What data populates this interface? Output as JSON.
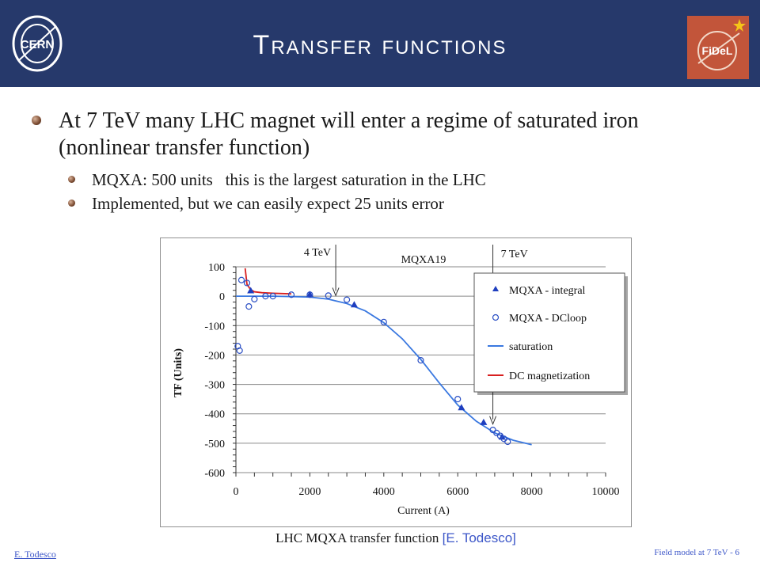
{
  "header": {
    "title": "Transfer functions",
    "cern_logo_text": "CERN",
    "fidel_logo_text": "FiDeL"
  },
  "bullets": [
    {
      "level": 1,
      "text": "At 7 TeV many LHC magnet will enter a regime of saturated iron (nonlinear transfer function)"
    },
    {
      "level": 2,
      "text": "MQXA: 500 units   this is the largest saturation in the LHC"
    },
    {
      "level": 2,
      "text": "Implemented, but we can easily expect 25 units error"
    }
  ],
  "chart_data": {
    "type": "scatter",
    "title": "MQXA19",
    "xlabel": "Current (A)",
    "ylabel": "TF (Units)",
    "xlim": [
      0,
      10000
    ],
    "ylim": [
      -600,
      100
    ],
    "x_ticks": [
      0,
      2000,
      4000,
      6000,
      8000,
      10000
    ],
    "y_ticks": [
      100,
      0,
      -100,
      -200,
      -300,
      -400,
      -500,
      -600
    ],
    "grid": "horizontal",
    "legend_position": "right",
    "series": [
      {
        "name": "MQXA - integral",
        "style": "triangle",
        "color": "#1f3fbf",
        "x": [
          400,
          2000,
          3200,
          6100,
          6700,
          7200
        ],
        "y": [
          18,
          5,
          -30,
          -380,
          -430,
          -480
        ]
      },
      {
        "name": "MQXA - DCloop",
        "style": "circle",
        "color": "#2b4fc4",
        "x": [
          50,
          100,
          150,
          300,
          350,
          500,
          800,
          1000,
          1500,
          2000,
          2500,
          3000,
          4000,
          5000,
          6000,
          6950,
          7050,
          7150,
          7250,
          7350
        ],
        "y": [
          -170,
          -185,
          55,
          45,
          -35,
          -10,
          0,
          0,
          5,
          5,
          2,
          -12,
          -88,
          -218,
          -350,
          -455,
          -465,
          -475,
          -485,
          -495
        ]
      },
      {
        "name": "saturation",
        "style": "line",
        "color": "#3a78e0",
        "x": [
          0,
          1000,
          2000,
          2500,
          3000,
          3500,
          4000,
          4500,
          5000,
          5500,
          6000,
          6500,
          7000,
          7500,
          8000
        ],
        "y": [
          0,
          0,
          -3,
          -10,
          -25,
          -50,
          -90,
          -145,
          -215,
          -295,
          -370,
          -425,
          -465,
          -490,
          -505
        ]
      },
      {
        "name": "DC magnetization",
        "style": "line",
        "color": "#d82020",
        "x": [
          250,
          300,
          400,
          500,
          700,
          1000,
          1500
        ],
        "y": [
          95,
          40,
          22,
          15,
          12,
          10,
          8
        ]
      }
    ],
    "annotations": [
      {
        "text": "4 TeV",
        "x": 2700
      },
      {
        "text": "7 TeV",
        "x": 6950
      }
    ]
  },
  "caption": {
    "text": "LHC MQXA transfer function ",
    "ref": "[E. Todesco]"
  },
  "footer": {
    "author": "E. Todesco",
    "right": "Field model at 7 TeV - 6"
  }
}
